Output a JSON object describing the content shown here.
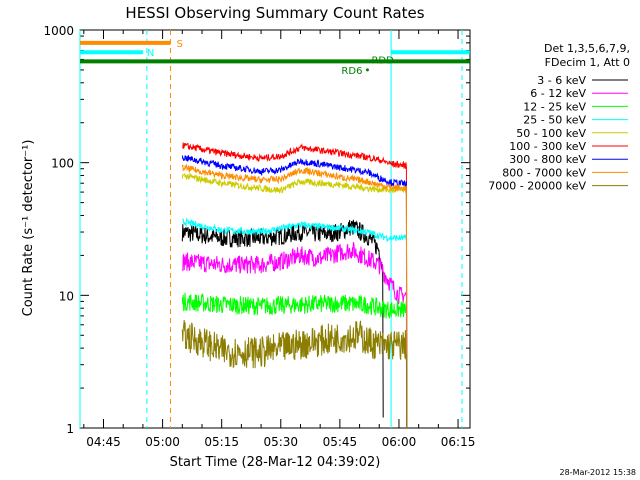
{
  "chart_data": {
    "type": "line",
    "title": "HESSI Observing Summary Count Rates",
    "xlabel": "Start Time (28-Mar-12 04:39:02)",
    "ylabel": "Count Rate (s⁻¹ detector⁻¹)",
    "y_scale": "log",
    "xlim": [
      "04:39:02",
      "06:18:02"
    ],
    "ylim": [
      1,
      1000
    ],
    "x_ticks": [
      "04:45",
      "05:00",
      "05:15",
      "05:30",
      "05:45",
      "06:00",
      "06:15"
    ],
    "y_ticks": [
      "1",
      "10",
      "100",
      "1000"
    ],
    "legend_placement": "right",
    "legend_header": [
      "Det 1,3,5,6,7,9,",
      "FDecim 1, Att 0"
    ],
    "timestamp": "28-Mar-2012 15:38",
    "series": [
      {
        "name": "3 - 6 keV",
        "color": "#000000",
        "x": [
          "05:05",
          "05:15",
          "05:25",
          "05:30",
          "05:35",
          "05:40",
          "05:45",
          "05:48",
          "05:52",
          "05:55",
          "05:56"
        ],
        "y": [
          30,
          27,
          27,
          28,
          30,
          29,
          30,
          33,
          28,
          22,
          15
        ]
      },
      {
        "name": "6 - 12 keV",
        "color": "#ff00ff",
        "x": [
          "05:05",
          "05:15",
          "05:25",
          "05:30",
          "05:35",
          "05:40",
          "05:45",
          "05:48",
          "05:52",
          "05:55",
          "05:58",
          "06:00",
          "06:02"
        ],
        "y": [
          18,
          17,
          17,
          18,
          20,
          19,
          21,
          22,
          19,
          17,
          12,
          10,
          10
        ]
      },
      {
        "name": "12 - 25 keV",
        "color": "#00ff00",
        "x": [
          "05:05",
          "05:15",
          "05:25",
          "05:35",
          "05:45",
          "05:52",
          "05:55",
          "05:58",
          "06:02"
        ],
        "y": [
          9,
          8.5,
          8.3,
          8.5,
          8.7,
          8.5,
          8.0,
          7.8,
          7.8
        ]
      },
      {
        "name": "25 - 50 keV",
        "color": "#00ffff",
        "x": [
          "05:05",
          "05:15",
          "05:25",
          "05:30",
          "05:35",
          "05:45",
          "05:52",
          "05:55",
          "05:58",
          "06:02"
        ],
        "y": [
          36,
          31,
          30,
          32,
          34,
          32,
          30,
          28,
          27,
          27
        ]
      },
      {
        "name": "50 - 100 keV",
        "color": "#cccc00",
        "x": [
          "05:05",
          "05:15",
          "05:25",
          "05:30",
          "05:35",
          "05:45",
          "05:52",
          "05:55",
          "05:58",
          "06:02"
        ],
        "y": [
          80,
          70,
          64,
          62,
          72,
          68,
          64,
          63,
          62,
          62
        ]
      },
      {
        "name": "100 - 300 keV",
        "color": "#ff0000",
        "x": [
          "05:05",
          "05:15",
          "05:25",
          "05:30",
          "05:35",
          "05:45",
          "05:52",
          "05:55",
          "05:58",
          "06:02"
        ],
        "y": [
          135,
          118,
          108,
          112,
          130,
          118,
          110,
          105,
          98,
          95
        ]
      },
      {
        "name": "300 - 800 keV",
        "color": "#0000ff",
        "x": [
          "05:05",
          "05:15",
          "05:25",
          "05:30",
          "05:35",
          "05:45",
          "05:52",
          "05:55",
          "05:58",
          "06:02"
        ],
        "y": [
          110,
          95,
          86,
          88,
          103,
          92,
          85,
          77,
          71,
          69
        ]
      },
      {
        "name": "800 - 7000 keV",
        "color": "#ff8c00",
        "x": [
          "05:05",
          "05:15",
          "05:25",
          "05:30",
          "05:35",
          "05:45",
          "05:52",
          "05:55",
          "05:58",
          "06:02"
        ],
        "y": [
          92,
          80,
          74,
          75,
          88,
          78,
          72,
          68,
          65,
          64
        ]
      },
      {
        "name": "7000 - 20000 keV",
        "color": "#8b7d00",
        "x": [
          "05:05",
          "05:10",
          "05:15",
          "05:25",
          "05:35",
          "05:45",
          "05:50",
          "05:52",
          "05:55",
          "05:58",
          "06:02"
        ],
        "y": [
          5,
          4.5,
          3.8,
          3.7,
          4.3,
          4.8,
          5,
          4.5,
          4.2,
          4.2,
          4.2
        ]
      }
    ],
    "flag_bars": [
      {
        "label": "S",
        "color": "#ff8c00",
        "x_start": "04:39:02",
        "x_end": "05:02",
        "y": 800
      },
      {
        "label": "N",
        "color": "#00ffff",
        "x_start": "04:39:02",
        "x_end": "04:55",
        "y": 680
      },
      {
        "label": "N",
        "color": "#00ffff",
        "x_start": "05:58",
        "x_end": "06:18",
        "y": 680
      },
      {
        "label": "RDD",
        "color": "#008000",
        "x_start": "04:39:02",
        "x_end": "06:18",
        "y": 580
      },
      {
        "label": "RD6",
        "color": "#008000",
        "x_start": "05:52",
        "x_end": "05:52",
        "y": 500
      }
    ],
    "vlines": [
      {
        "x": "04:39:02",
        "color": "#00ffff",
        "style": "solid"
      },
      {
        "x": "04:56",
        "color": "#00ffff",
        "style": "dashed"
      },
      {
        "x": "05:02",
        "color": "#ff8c00",
        "style": "dashed"
      },
      {
        "x": "05:58",
        "color": "#00ffff",
        "style": "solid"
      },
      {
        "x": "06:16",
        "color": "#00ffff",
        "style": "dashed"
      }
    ]
  }
}
